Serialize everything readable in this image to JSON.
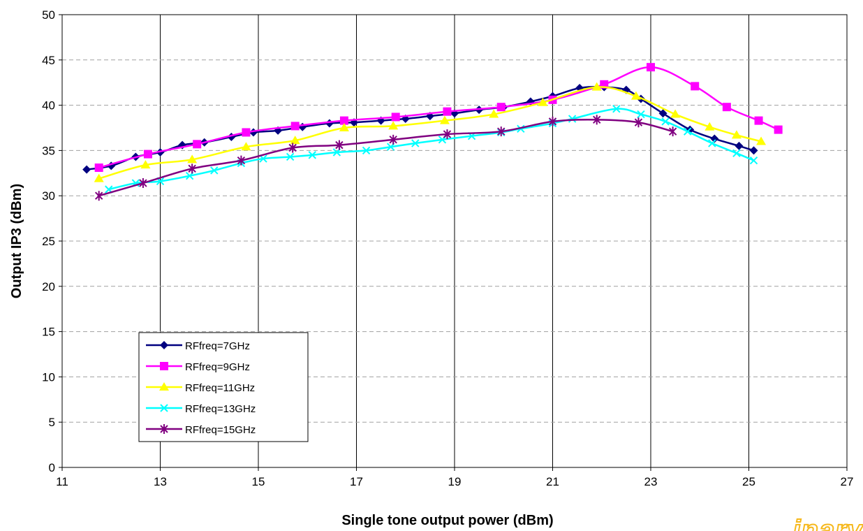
{
  "chart_data": {
    "type": "line",
    "title": "",
    "xlabel": "Single tone output power (dBm)",
    "ylabel": "Output IP3 (dBm)",
    "xlim": [
      11,
      27
    ],
    "ylim": [
      0,
      50
    ],
    "xticks": [
      11,
      13,
      15,
      17,
      19,
      21,
      23,
      25,
      27
    ],
    "yticks": [
      0,
      5,
      10,
      15,
      20,
      25,
      30,
      35,
      40,
      45,
      50
    ],
    "vertical_grid": "solid",
    "horizontal_grid": "dashed",
    "legend_position": "bottom-left",
    "series": [
      {
        "name": "RFfreq=7GHz",
        "color": "#000080",
        "marker": "diamond",
        "points": [
          [
            11.5,
            32.9
          ],
          [
            12.0,
            33.3
          ],
          [
            12.5,
            34.3
          ],
          [
            13.0,
            34.8
          ],
          [
            13.45,
            35.6
          ],
          [
            13.9,
            35.9
          ],
          [
            14.45,
            36.5
          ],
          [
            14.9,
            37.0
          ],
          [
            15.4,
            37.2
          ],
          [
            15.9,
            37.6
          ],
          [
            16.45,
            38.0
          ],
          [
            16.95,
            38.1
          ],
          [
            17.5,
            38.3
          ],
          [
            18.0,
            38.5
          ],
          [
            18.5,
            38.8
          ],
          [
            19.0,
            39.1
          ],
          [
            19.5,
            39.5
          ],
          [
            20.0,
            39.8
          ],
          [
            20.55,
            40.4
          ],
          [
            21.0,
            41.0
          ],
          [
            21.55,
            41.9
          ],
          [
            22.05,
            42.0
          ],
          [
            22.5,
            41.7
          ],
          [
            22.8,
            40.7
          ],
          [
            23.25,
            39.1
          ],
          [
            23.8,
            37.3
          ],
          [
            24.3,
            36.3
          ],
          [
            24.8,
            35.5
          ],
          [
            25.1,
            35.0
          ]
        ]
      },
      {
        "name": "RFfreq=9GHz",
        "color": "#ff00ff",
        "marker": "square",
        "points": [
          [
            11.75,
            33.1
          ],
          [
            12.75,
            34.6
          ],
          [
            13.75,
            35.7
          ],
          [
            14.75,
            37.0
          ],
          [
            15.75,
            37.7
          ],
          [
            16.75,
            38.3
          ],
          [
            17.8,
            38.7
          ],
          [
            18.85,
            39.3
          ],
          [
            19.95,
            39.8
          ],
          [
            21.0,
            40.6
          ],
          [
            22.05,
            42.3
          ],
          [
            23.0,
            44.2
          ],
          [
            23.9,
            42.1
          ],
          [
            24.55,
            39.8
          ],
          [
            25.2,
            38.3
          ],
          [
            25.6,
            37.3
          ]
        ]
      },
      {
        "name": "RFfreq=11GHz",
        "color": "#ffff00",
        "marker": "triangle",
        "points": [
          [
            11.75,
            31.9
          ],
          [
            12.7,
            33.4
          ],
          [
            13.65,
            34.0
          ],
          [
            14.75,
            35.4
          ],
          [
            15.75,
            36.1
          ],
          [
            16.75,
            37.5
          ],
          [
            17.75,
            37.7
          ],
          [
            18.8,
            38.3
          ],
          [
            19.8,
            39.0
          ],
          [
            20.8,
            40.3
          ],
          [
            21.9,
            42.0
          ],
          [
            22.7,
            41.0
          ],
          [
            23.5,
            39.0
          ],
          [
            24.2,
            37.6
          ],
          [
            24.75,
            36.7
          ],
          [
            25.25,
            36.0
          ]
        ]
      },
      {
        "name": "RFfreq=13GHz",
        "color": "#00ffff",
        "marker": "x",
        "points": [
          [
            11.95,
            30.7
          ],
          [
            12.5,
            31.4
          ],
          [
            13.0,
            31.6
          ],
          [
            13.6,
            32.2
          ],
          [
            14.1,
            32.8
          ],
          [
            14.65,
            33.6
          ],
          [
            15.1,
            34.1
          ],
          [
            15.65,
            34.3
          ],
          [
            16.1,
            34.5
          ],
          [
            16.6,
            34.8
          ],
          [
            17.2,
            35.0
          ],
          [
            17.7,
            35.4
          ],
          [
            18.2,
            35.8
          ],
          [
            18.75,
            36.2
          ],
          [
            19.35,
            36.6
          ],
          [
            19.95,
            37.0
          ],
          [
            20.35,
            37.4
          ],
          [
            21.0,
            38.0
          ],
          [
            21.4,
            38.5
          ],
          [
            22.3,
            39.6
          ],
          [
            22.8,
            39.0
          ],
          [
            23.3,
            38.2
          ],
          [
            23.75,
            37.1
          ],
          [
            24.25,
            35.8
          ],
          [
            24.75,
            34.7
          ],
          [
            25.1,
            33.9
          ]
        ]
      },
      {
        "name": "RFfreq=15GHz",
        "color": "#800080",
        "marker": "star",
        "points": [
          [
            11.75,
            30.0
          ],
          [
            12.65,
            31.4
          ],
          [
            13.65,
            33.0
          ],
          [
            14.65,
            33.9
          ],
          [
            15.7,
            35.3
          ],
          [
            16.65,
            35.6
          ],
          [
            17.75,
            36.2
          ],
          [
            18.85,
            36.8
          ],
          [
            19.95,
            37.1
          ],
          [
            21.0,
            38.2
          ],
          [
            21.9,
            38.4
          ],
          [
            22.75,
            38.1
          ],
          [
            23.45,
            37.1
          ]
        ]
      }
    ]
  }
}
